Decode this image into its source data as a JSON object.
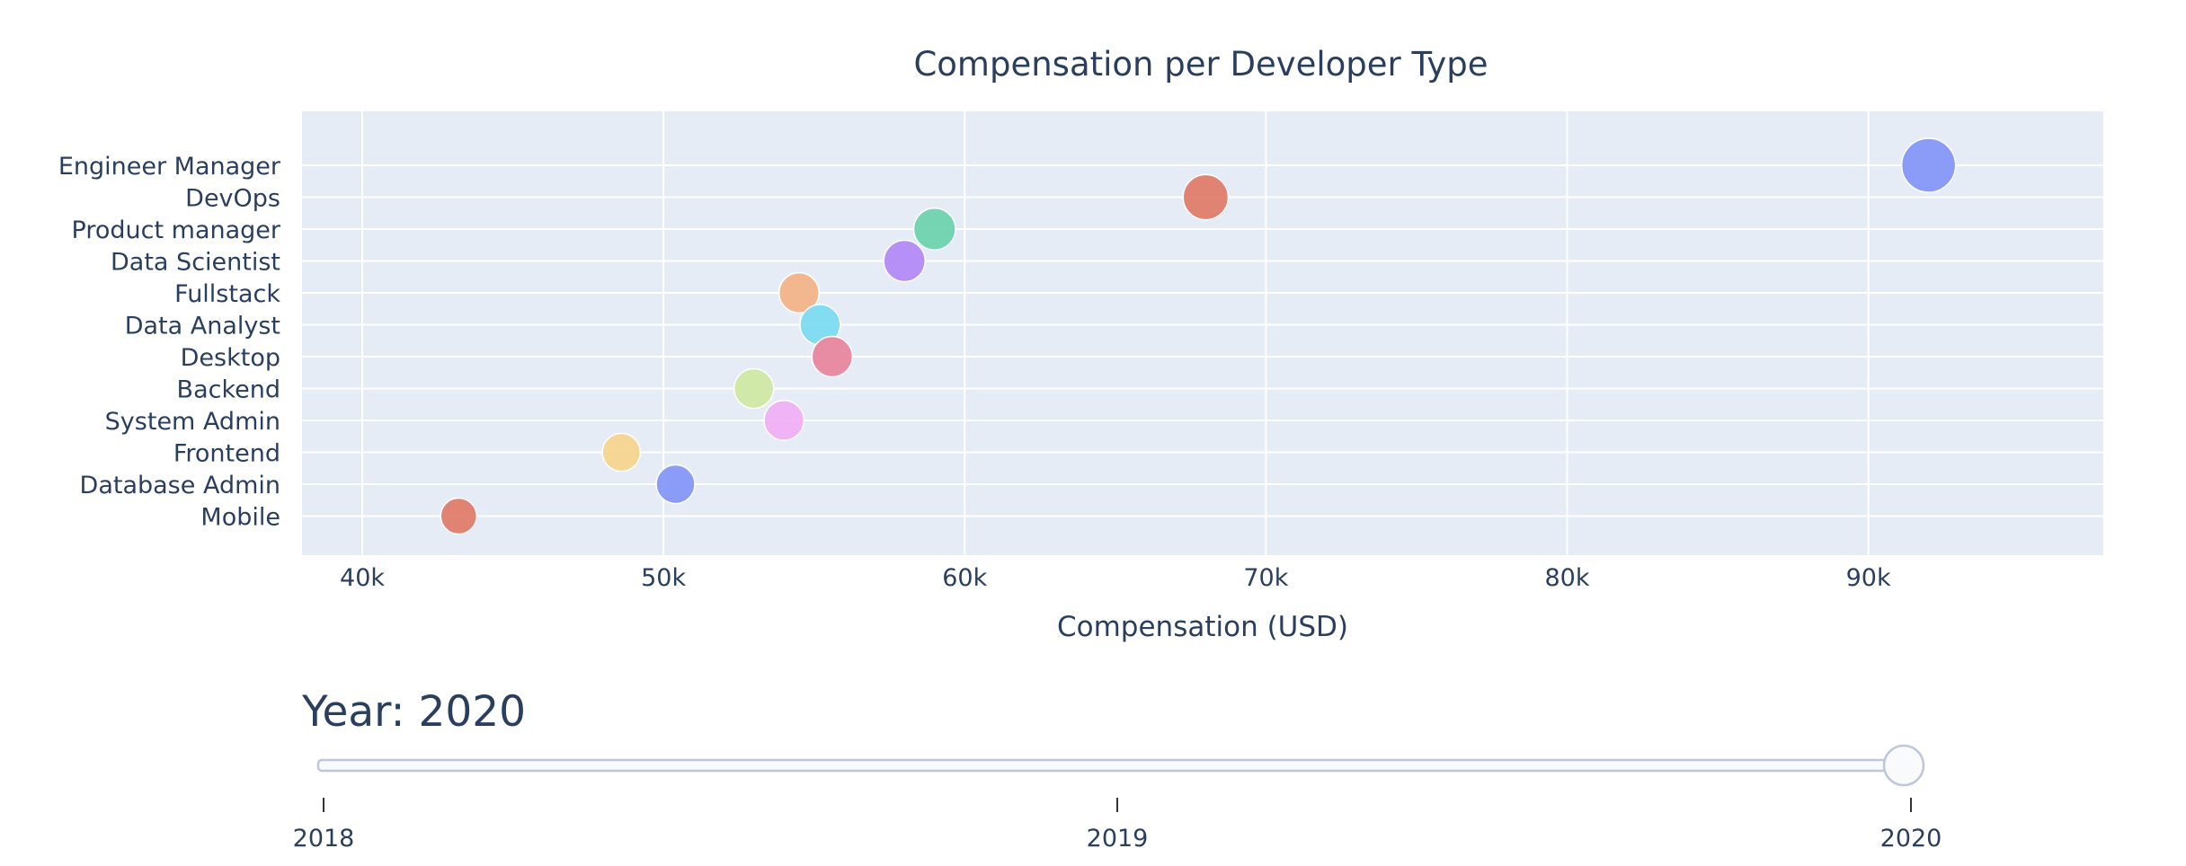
{
  "chart_data": {
    "type": "scatter",
    "title": "Compensation per Developer Type",
    "xlabel": "Compensation (USD)",
    "ylabel": "",
    "xlim": [
      38000,
      97800
    ],
    "x_ticks": [
      40000,
      50000,
      60000,
      70000,
      80000,
      90000
    ],
    "x_tick_labels": [
      "40k",
      "50k",
      "60k",
      "70k",
      "80k",
      "90k"
    ],
    "categories": [
      "Engineer Manager",
      "DevOps",
      "Product manager",
      "Data Scientist",
      "Fullstack",
      "Data Analyst",
      "Desktop",
      "Backend",
      "System Admin",
      "Frontend",
      "Database Admin",
      "Mobile"
    ],
    "points": [
      {
        "category": "Engineer Manager",
        "x": 92000,
        "color": "#8598f7"
      },
      {
        "category": "DevOps",
        "x": 68000,
        "color": "#e07d6a"
      },
      {
        "category": "Product manager",
        "x": 59000,
        "color": "#6fd3ae"
      },
      {
        "category": "Data Scientist",
        "x": 58000,
        "color": "#b38bf7"
      },
      {
        "category": "Fullstack",
        "x": 54500,
        "color": "#f3b489"
      },
      {
        "category": "Data Analyst",
        "x": 55200,
        "color": "#7ddcf1"
      },
      {
        "category": "Desktop",
        "x": 55600,
        "color": "#e8879f"
      },
      {
        "category": "Backend",
        "x": 53000,
        "color": "#cfe8a3"
      },
      {
        "category": "System Admin",
        "x": 54000,
        "color": "#f0b1f5"
      },
      {
        "category": "Frontend",
        "x": 48600,
        "color": "#f5d58e"
      },
      {
        "category": "Database Admin",
        "x": 50400,
        "color": "#8598f7"
      },
      {
        "category": "Mobile",
        "x": 43200,
        "color": "#e07d6a"
      }
    ],
    "grid": true,
    "plot_background": "#e5ecf6"
  },
  "slider": {
    "current_label": "Year: 2020",
    "steps": [
      "2018",
      "2019",
      "2020"
    ],
    "active_index": 2
  }
}
